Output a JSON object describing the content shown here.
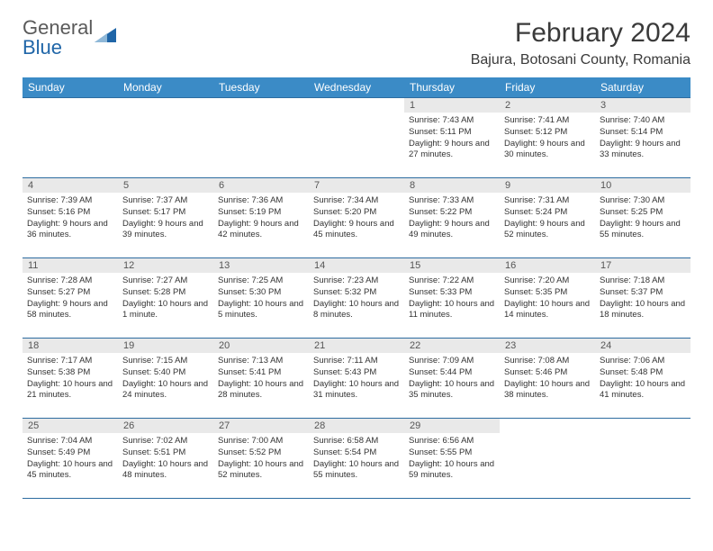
{
  "branding": {
    "logo_word1": "General",
    "logo_word2": "Blue",
    "logo_icon_color": "#2066a8",
    "logo_text_color": "#5a5a5a"
  },
  "header": {
    "title": "February 2024",
    "location": "Bajura, Botosani County, Romania"
  },
  "style": {
    "header_bg": "#3b8bc6",
    "header_text": "#ffffff",
    "cell_border": "#2d6ca0",
    "daynum_bg": "#e9e9e9",
    "daynum_color": "#555555",
    "body_text": "#333333",
    "page_bg": "#ffffff",
    "title_fontsize": 30,
    "location_fontsize": 16,
    "header_fontsize": 12,
    "day_fontsize": 9.5
  },
  "weekdays": [
    "Sunday",
    "Monday",
    "Tuesday",
    "Wednesday",
    "Thursday",
    "Friday",
    "Saturday"
  ],
  "weeks": [
    [
      {
        "day": "",
        "sunrise": "",
        "sunset": "",
        "daylight": ""
      },
      {
        "day": "",
        "sunrise": "",
        "sunset": "",
        "daylight": ""
      },
      {
        "day": "",
        "sunrise": "",
        "sunset": "",
        "daylight": ""
      },
      {
        "day": "",
        "sunrise": "",
        "sunset": "",
        "daylight": ""
      },
      {
        "day": "1",
        "sunrise": "Sunrise: 7:43 AM",
        "sunset": "Sunset: 5:11 PM",
        "daylight": "Daylight: 9 hours and 27 minutes."
      },
      {
        "day": "2",
        "sunrise": "Sunrise: 7:41 AM",
        "sunset": "Sunset: 5:12 PM",
        "daylight": "Daylight: 9 hours and 30 minutes."
      },
      {
        "day": "3",
        "sunrise": "Sunrise: 7:40 AM",
        "sunset": "Sunset: 5:14 PM",
        "daylight": "Daylight: 9 hours and 33 minutes."
      }
    ],
    [
      {
        "day": "4",
        "sunrise": "Sunrise: 7:39 AM",
        "sunset": "Sunset: 5:16 PM",
        "daylight": "Daylight: 9 hours and 36 minutes."
      },
      {
        "day": "5",
        "sunrise": "Sunrise: 7:37 AM",
        "sunset": "Sunset: 5:17 PM",
        "daylight": "Daylight: 9 hours and 39 minutes."
      },
      {
        "day": "6",
        "sunrise": "Sunrise: 7:36 AM",
        "sunset": "Sunset: 5:19 PM",
        "daylight": "Daylight: 9 hours and 42 minutes."
      },
      {
        "day": "7",
        "sunrise": "Sunrise: 7:34 AM",
        "sunset": "Sunset: 5:20 PM",
        "daylight": "Daylight: 9 hours and 45 minutes."
      },
      {
        "day": "8",
        "sunrise": "Sunrise: 7:33 AM",
        "sunset": "Sunset: 5:22 PM",
        "daylight": "Daylight: 9 hours and 49 minutes."
      },
      {
        "day": "9",
        "sunrise": "Sunrise: 7:31 AM",
        "sunset": "Sunset: 5:24 PM",
        "daylight": "Daylight: 9 hours and 52 minutes."
      },
      {
        "day": "10",
        "sunrise": "Sunrise: 7:30 AM",
        "sunset": "Sunset: 5:25 PM",
        "daylight": "Daylight: 9 hours and 55 minutes."
      }
    ],
    [
      {
        "day": "11",
        "sunrise": "Sunrise: 7:28 AM",
        "sunset": "Sunset: 5:27 PM",
        "daylight": "Daylight: 9 hours and 58 minutes."
      },
      {
        "day": "12",
        "sunrise": "Sunrise: 7:27 AM",
        "sunset": "Sunset: 5:28 PM",
        "daylight": "Daylight: 10 hours and 1 minute."
      },
      {
        "day": "13",
        "sunrise": "Sunrise: 7:25 AM",
        "sunset": "Sunset: 5:30 PM",
        "daylight": "Daylight: 10 hours and 5 minutes."
      },
      {
        "day": "14",
        "sunrise": "Sunrise: 7:23 AM",
        "sunset": "Sunset: 5:32 PM",
        "daylight": "Daylight: 10 hours and 8 minutes."
      },
      {
        "day": "15",
        "sunrise": "Sunrise: 7:22 AM",
        "sunset": "Sunset: 5:33 PM",
        "daylight": "Daylight: 10 hours and 11 minutes."
      },
      {
        "day": "16",
        "sunrise": "Sunrise: 7:20 AM",
        "sunset": "Sunset: 5:35 PM",
        "daylight": "Daylight: 10 hours and 14 minutes."
      },
      {
        "day": "17",
        "sunrise": "Sunrise: 7:18 AM",
        "sunset": "Sunset: 5:37 PM",
        "daylight": "Daylight: 10 hours and 18 minutes."
      }
    ],
    [
      {
        "day": "18",
        "sunrise": "Sunrise: 7:17 AM",
        "sunset": "Sunset: 5:38 PM",
        "daylight": "Daylight: 10 hours and 21 minutes."
      },
      {
        "day": "19",
        "sunrise": "Sunrise: 7:15 AM",
        "sunset": "Sunset: 5:40 PM",
        "daylight": "Daylight: 10 hours and 24 minutes."
      },
      {
        "day": "20",
        "sunrise": "Sunrise: 7:13 AM",
        "sunset": "Sunset: 5:41 PM",
        "daylight": "Daylight: 10 hours and 28 minutes."
      },
      {
        "day": "21",
        "sunrise": "Sunrise: 7:11 AM",
        "sunset": "Sunset: 5:43 PM",
        "daylight": "Daylight: 10 hours and 31 minutes."
      },
      {
        "day": "22",
        "sunrise": "Sunrise: 7:09 AM",
        "sunset": "Sunset: 5:44 PM",
        "daylight": "Daylight: 10 hours and 35 minutes."
      },
      {
        "day": "23",
        "sunrise": "Sunrise: 7:08 AM",
        "sunset": "Sunset: 5:46 PM",
        "daylight": "Daylight: 10 hours and 38 minutes."
      },
      {
        "day": "24",
        "sunrise": "Sunrise: 7:06 AM",
        "sunset": "Sunset: 5:48 PM",
        "daylight": "Daylight: 10 hours and 41 minutes."
      }
    ],
    [
      {
        "day": "25",
        "sunrise": "Sunrise: 7:04 AM",
        "sunset": "Sunset: 5:49 PM",
        "daylight": "Daylight: 10 hours and 45 minutes."
      },
      {
        "day": "26",
        "sunrise": "Sunrise: 7:02 AM",
        "sunset": "Sunset: 5:51 PM",
        "daylight": "Daylight: 10 hours and 48 minutes."
      },
      {
        "day": "27",
        "sunrise": "Sunrise: 7:00 AM",
        "sunset": "Sunset: 5:52 PM",
        "daylight": "Daylight: 10 hours and 52 minutes."
      },
      {
        "day": "28",
        "sunrise": "Sunrise: 6:58 AM",
        "sunset": "Sunset: 5:54 PM",
        "daylight": "Daylight: 10 hours and 55 minutes."
      },
      {
        "day": "29",
        "sunrise": "Sunrise: 6:56 AM",
        "sunset": "Sunset: 5:55 PM",
        "daylight": "Daylight: 10 hours and 59 minutes."
      },
      {
        "day": "",
        "sunrise": "",
        "sunset": "",
        "daylight": ""
      },
      {
        "day": "",
        "sunrise": "",
        "sunset": "",
        "daylight": ""
      }
    ]
  ]
}
